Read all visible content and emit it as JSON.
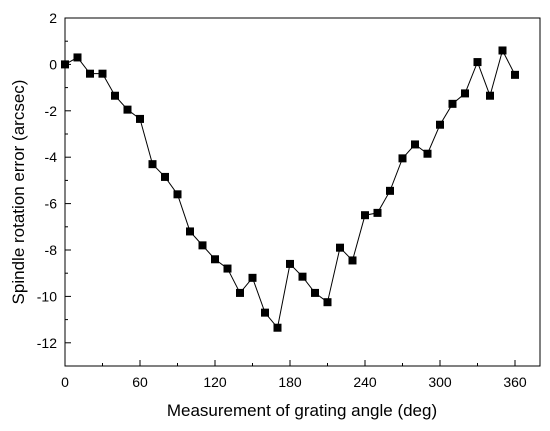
{
  "chart_data": {
    "type": "line",
    "title": "",
    "xlabel": "Measurement of grating angle (deg)",
    "ylabel": "Spindle rotation error (arcsec)",
    "xlim": [
      0,
      380
    ],
    "ylim": [
      -13,
      2
    ],
    "x_ticks": [
      0,
      60,
      120,
      180,
      240,
      300,
      360
    ],
    "y_ticks": [
      2,
      0,
      -2,
      -4,
      -6,
      -8,
      -10,
      -12
    ],
    "marker": "square",
    "line_color": "#000000",
    "marker_color": "#000000",
    "grid": false,
    "series": [
      {
        "x": [
          0,
          10,
          20,
          30,
          40,
          50,
          60,
          70,
          80,
          90,
          100,
          110,
          120,
          130,
          140,
          150,
          160,
          170,
          180,
          190,
          200,
          210,
          220,
          230,
          240,
          250,
          260,
          270,
          280,
          290,
          300,
          310,
          320,
          330,
          340,
          350,
          360
        ],
        "y": [
          0.0,
          0.3,
          -0.4,
          -0.4,
          -1.35,
          -1.95,
          -2.35,
          -4.3,
          -4.85,
          -5.6,
          -7.2,
          -7.8,
          -8.4,
          -8.8,
          -9.85,
          -9.2,
          -10.7,
          -11.35,
          -8.6,
          -9.15,
          -9.85,
          -10.25,
          -7.9,
          -8.45,
          -6.5,
          -6.4,
          -5.45,
          -4.05,
          -3.45,
          -3.85,
          -2.6,
          -1.7,
          -1.25,
          0.1,
          -1.35,
          0.6,
          -0.45
        ]
      }
    ]
  }
}
